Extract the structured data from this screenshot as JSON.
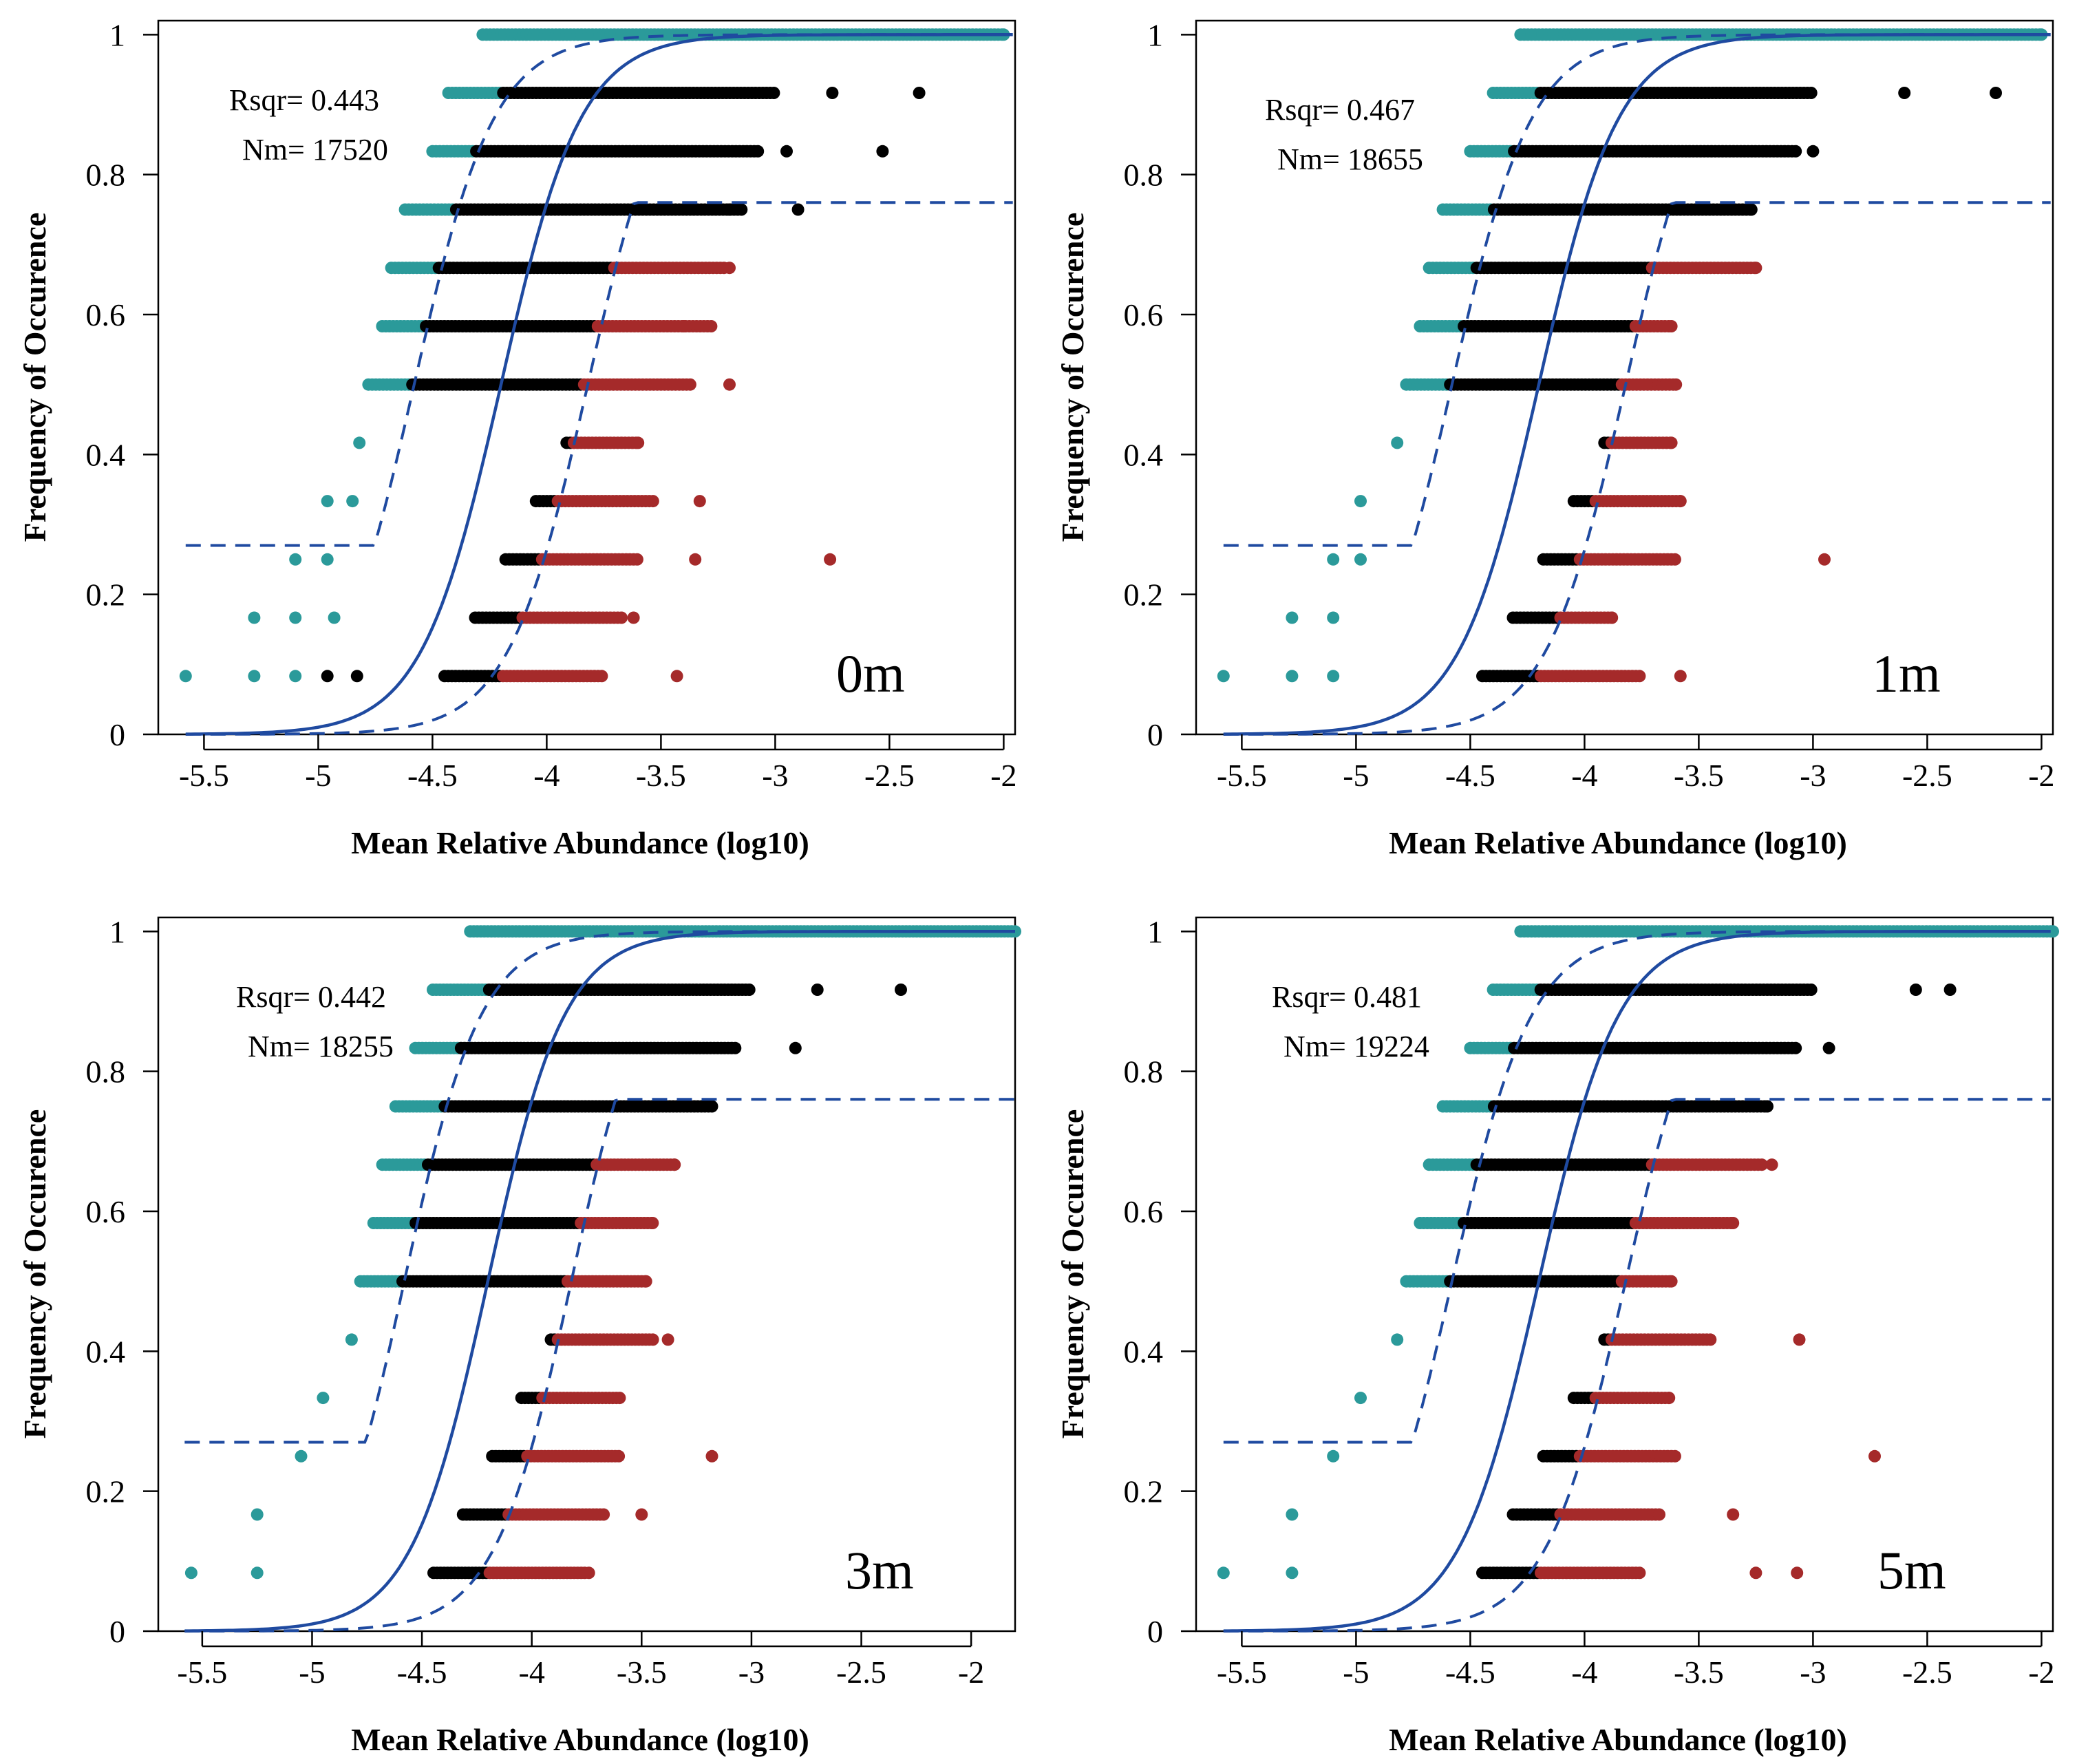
{
  "colors": {
    "above": "#2b9a9a",
    "neutral": "#000000",
    "below": "#a52a2a",
    "fit": "#1f4aa0"
  },
  "chart_data": [
    {
      "type": "scatter",
      "panel_label": "0m",
      "rsqr": "Rsqr= 0.443",
      "nm": "Nm= 17520",
      "xlabel": "Mean Relative Abundance (log10)",
      "ylabel": "Frequency of Occurence",
      "xlim": [
        -5.7,
        -1.95
      ],
      "ylim": [
        0,
        1.02
      ],
      "xticks": [
        "-5.5",
        "-5",
        "-4.5",
        "-4",
        "-3.5",
        "-3",
        "-2.5",
        "-2"
      ],
      "yticks": [
        "0",
        "0.2",
        "0.4",
        "0.6",
        "0.8",
        "1"
      ],
      "grid": false,
      "model": {
        "center": -4.2,
        "width": 0.175,
        "band": 0.38,
        "upper_cap": 0.76
      },
      "rows": [
        {
          "y": 0.0833,
          "xmin": -5.58,
          "xmax": -3.43,
          "sparse": [
            -5.58,
            -5.28,
            -5.1,
            -4.96,
            -4.83,
            -3.43
          ]
        },
        {
          "y": 0.1667,
          "xmin": -5.28,
          "xmax": -3.62,
          "sparse": [
            -5.28,
            -5.1,
            -4.93,
            -3.62
          ]
        },
        {
          "y": 0.25,
          "xmin": -5.1,
          "xmax": -2.76,
          "sparse": [
            -5.1,
            -4.96,
            -3.35,
            -2.76
          ]
        },
        {
          "y": 0.3333,
          "xmin": -4.96,
          "xmax": -3.33,
          "sparse": [
            -4.96,
            -4.85,
            -3.33
          ]
        },
        {
          "y": 0.4167,
          "xmin": -4.82,
          "xmax": -3.6,
          "sparse": [
            -4.82,
            -3.6
          ]
        },
        {
          "y": 0.5,
          "xmin": -4.78,
          "xmax": -3.2,
          "sparse": [
            -4.78,
            -3.2
          ]
        },
        {
          "y": 0.5833,
          "xmin": -4.72,
          "xmax": -3.28,
          "sparse": [
            -3.4,
            -3.28
          ]
        },
        {
          "y": 0.6667,
          "xmin": -4.68,
          "xmax": -3.2,
          "sparse": [
            -3.2
          ]
        },
        {
          "y": 0.75,
          "xmin": -4.62,
          "xmax": -2.9,
          "sparse": [
            -3.2,
            -2.9
          ]
        },
        {
          "y": 0.8333,
          "xmin": -4.5,
          "xmax": -2.53,
          "sparse": [
            -2.95,
            -2.53
          ]
        },
        {
          "y": 0.9167,
          "xmin": -4.43,
          "xmax": -2.37,
          "sparse": [
            -2.75,
            -2.37
          ]
        },
        {
          "y": 1.0,
          "xmin": -4.28,
          "xmax": -2.0,
          "sparse": [
            -2.0
          ]
        }
      ]
    },
    {
      "type": "scatter",
      "panel_label": "1m",
      "rsqr": "Rsqr= 0.467",
      "nm": "Nm= 18655",
      "xlabel": "Mean Relative Abundance (log10)",
      "ylabel": "Frequency of Occurence",
      "xlim": [
        -5.7,
        -1.95
      ],
      "ylim": [
        0,
        1.02
      ],
      "xticks": [
        "-5.5",
        "-5",
        "-4.5",
        "-4",
        "-3.5",
        "-3",
        "-2.5",
        "-2"
      ],
      "yticks": [
        "0",
        "0.2",
        "0.4",
        "0.6",
        "0.8",
        "1"
      ],
      "grid": false,
      "model": {
        "center": -4.2,
        "width": 0.175,
        "band": 0.38,
        "upper_cap": 0.76
      },
      "rows": [
        {
          "y": 0.0833,
          "xmin": -5.58,
          "xmax": -3.58,
          "sparse": [
            -5.58,
            -5.28,
            -5.1,
            -3.58
          ]
        },
        {
          "y": 0.1667,
          "xmin": -5.28,
          "xmax": -3.88,
          "sparse": [
            -5.28,
            -5.1,
            -3.88
          ]
        },
        {
          "y": 0.25,
          "xmin": -5.1,
          "xmax": -2.95,
          "sparse": [
            -5.1,
            -4.98,
            -2.95
          ]
        },
        {
          "y": 0.3333,
          "xmin": -4.98,
          "xmax": -3.58,
          "sparse": [
            -4.98,
            -3.58
          ]
        },
        {
          "y": 0.4167,
          "xmin": -4.82,
          "xmax": -3.62,
          "sparse": [
            -4.82,
            -3.62
          ]
        },
        {
          "y": 0.5,
          "xmin": -4.78,
          "xmax": -3.6,
          "sparse": [
            -3.6
          ]
        },
        {
          "y": 0.5833,
          "xmin": -4.72,
          "xmax": -3.62,
          "sparse": [
            -3.62
          ]
        },
        {
          "y": 0.6667,
          "xmin": -4.68,
          "xmax": -3.25,
          "sparse": [
            -3.25
          ]
        },
        {
          "y": 0.75,
          "xmin": -4.62,
          "xmax": -3.27,
          "sparse": [
            -3.27
          ]
        },
        {
          "y": 0.8333,
          "xmin": -4.5,
          "xmax": -3.0,
          "sparse": [
            -3.0
          ]
        },
        {
          "y": 0.9167,
          "xmin": -4.4,
          "xmax": -2.2,
          "sparse": [
            -2.6,
            -2.2
          ]
        },
        {
          "y": 1.0,
          "xmin": -4.28,
          "xmax": -2.0,
          "sparse": [
            -2.0
          ]
        }
      ]
    },
    {
      "type": "scatter",
      "panel_label": "3m",
      "rsqr": "Rsqr= 0.442",
      "nm": "Nm= 18255",
      "xlabel": "Mean Relative Abundance (log10)",
      "ylabel": "Frequency of Occurence",
      "xlim": [
        -5.7,
        -1.8
      ],
      "ylim": [
        0,
        1.02
      ],
      "xticks": [
        "-5.5",
        "-5",
        "-4.5",
        "-4",
        "-3.5",
        "-3",
        "-2.5",
        "-2"
      ],
      "yticks": [
        "0",
        "0.2",
        "0.4",
        "0.6",
        "0.8",
        "1"
      ],
      "grid": false,
      "model": {
        "center": -4.2,
        "width": 0.175,
        "band": 0.38,
        "upper_cap": 0.76
      },
      "rows": [
        {
          "y": 0.0833,
          "xmin": -5.55,
          "xmax": -3.74,
          "sparse": [
            -5.55,
            -5.25,
            -3.74
          ]
        },
        {
          "y": 0.1667,
          "xmin": -5.25,
          "xmax": -3.5,
          "sparse": [
            -5.25,
            -3.5
          ]
        },
        {
          "y": 0.25,
          "xmin": -5.05,
          "xmax": -3.18,
          "sparse": [
            -5.05,
            -3.18
          ]
        },
        {
          "y": 0.3333,
          "xmin": -4.95,
          "xmax": -3.6,
          "sparse": [
            -4.95,
            -3.6
          ]
        },
        {
          "y": 0.4167,
          "xmin": -4.82,
          "xmax": -3.38,
          "sparse": [
            -4.82,
            -3.38
          ]
        },
        {
          "y": 0.5,
          "xmin": -4.78,
          "xmax": -3.48,
          "sparse": [
            -3.48
          ]
        },
        {
          "y": 0.5833,
          "xmin": -4.72,
          "xmax": -3.45,
          "sparse": [
            -3.45
          ]
        },
        {
          "y": 0.6667,
          "xmin": -4.68,
          "xmax": -3.35,
          "sparse": [
            -3.35
          ]
        },
        {
          "y": 0.75,
          "xmin": -4.62,
          "xmax": -3.18,
          "sparse": [
            -3.18
          ]
        },
        {
          "y": 0.8333,
          "xmin": -4.53,
          "xmax": -2.8,
          "sparse": [
            -2.8
          ]
        },
        {
          "y": 0.9167,
          "xmin": -4.45,
          "xmax": -2.32,
          "sparse": [
            -2.7,
            -2.32
          ]
        },
        {
          "y": 1.0,
          "xmin": -4.28,
          "xmax": -1.8,
          "sparse": [
            -1.8
          ]
        }
      ]
    },
    {
      "type": "scatter",
      "panel_label": "5m",
      "rsqr": "Rsqr= 0.481",
      "nm": "Nm= 19224",
      "xlabel": "Mean Relative Abundance (log10)",
      "ylabel": "Frequency of Occurence",
      "xlim": [
        -5.7,
        -1.95
      ],
      "ylim": [
        0,
        1.02
      ],
      "xticks": [
        "-5.5",
        "-5",
        "-4.5",
        "-4",
        "-3.5",
        "-3",
        "-2.5",
        "-2"
      ],
      "yticks": [
        "0",
        "0.2",
        "0.4",
        "0.6",
        "0.8",
        "1"
      ],
      "grid": false,
      "model": {
        "center": -4.2,
        "width": 0.175,
        "band": 0.38,
        "upper_cap": 0.76
      },
      "rows": [
        {
          "y": 0.0833,
          "xmin": -5.58,
          "xmax": -3.07,
          "sparse": [
            -5.58,
            -5.28,
            -3.25,
            -3.07
          ]
        },
        {
          "y": 0.1667,
          "xmin": -5.28,
          "xmax": -3.35,
          "sparse": [
            -5.28,
            -3.35
          ]
        },
        {
          "y": 0.25,
          "xmin": -5.1,
          "xmax": -2.73,
          "sparse": [
            -5.1,
            -2.73
          ]
        },
        {
          "y": 0.3333,
          "xmin": -4.98,
          "xmax": -3.63,
          "sparse": [
            -4.98,
            -3.63
          ]
        },
        {
          "y": 0.4167,
          "xmin": -4.82,
          "xmax": -3.06,
          "sparse": [
            -4.82,
            -3.06
          ]
        },
        {
          "y": 0.5,
          "xmin": -4.78,
          "xmax": -3.62,
          "sparse": [
            -3.62
          ]
        },
        {
          "y": 0.5833,
          "xmin": -4.72,
          "xmax": -3.35,
          "sparse": [
            -3.35
          ]
        },
        {
          "y": 0.6667,
          "xmin": -4.68,
          "xmax": -3.18,
          "sparse": [
            -3.18
          ]
        },
        {
          "y": 0.75,
          "xmin": -4.62,
          "xmax": -3.2,
          "sparse": [
            -3.2
          ]
        },
        {
          "y": 0.8333,
          "xmin": -4.5,
          "xmax": -2.93,
          "sparse": [
            -2.93
          ]
        },
        {
          "y": 0.9167,
          "xmin": -4.4,
          "xmax": -2.4,
          "sparse": [
            -2.55,
            -2.4
          ]
        },
        {
          "y": 1.0,
          "xmin": -4.28,
          "xmax": -1.95,
          "sparse": [
            -1.95
          ]
        }
      ]
    }
  ]
}
